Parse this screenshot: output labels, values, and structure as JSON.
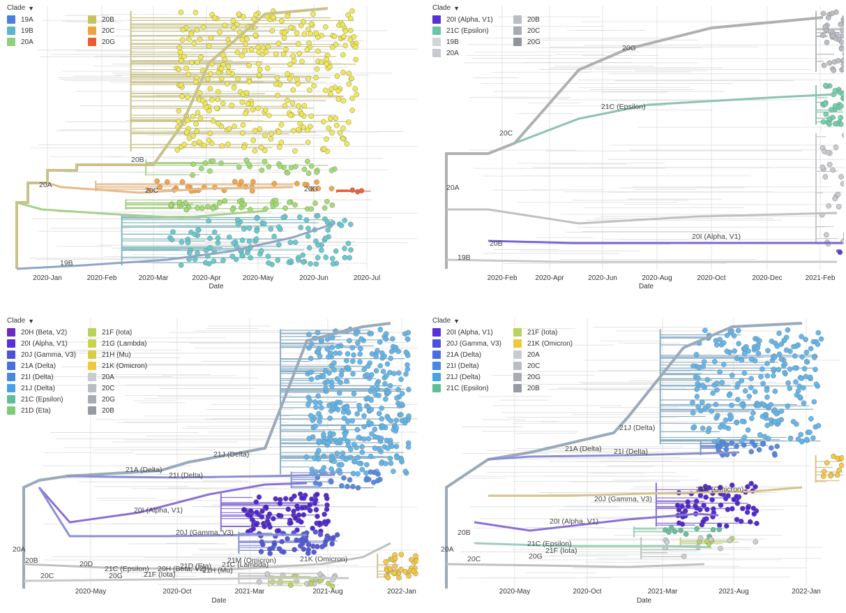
{
  "chart_data": [
    {
      "type": "scatter",
      "legend_title": "Clade",
      "xlabel": "Date",
      "x_ticks": [
        "2020-Jan",
        "2020-Feb",
        "2020-Mar",
        "2020-Apr",
        "2020-May",
        "2020-Jun",
        "2020-Jul"
      ],
      "legend": [
        {
          "label": "19A",
          "color": "#4a7fe0"
        },
        {
          "label": "19B",
          "color": "#5ab6c8"
        },
        {
          "label": "20A",
          "color": "#8fd07a"
        },
        {
          "label": "20B",
          "color": "#c9c25a"
        },
        {
          "label": "20C",
          "color": "#f4a23c"
        },
        {
          "label": "20G",
          "color": "#ef5a2e"
        }
      ],
      "branch_labels": [
        "20B",
        "20A",
        "20C",
        "20G",
        "19B"
      ],
      "clusters": [
        {
          "color": "#f0e84a",
          "n": 330,
          "x": [
            0.4,
            0.85
          ],
          "y": [
            0.02,
            0.55
          ],
          "branch": "#c9c28a"
        },
        {
          "color": "#9fdc6a",
          "n": 30,
          "x": [
            0.42,
            0.8
          ],
          "y": [
            0.58,
            0.64
          ],
          "branch": "#a9cf8a"
        },
        {
          "color": "#f4a23c",
          "n": 30,
          "x": [
            0.32,
            0.8
          ],
          "y": [
            0.66,
            0.7
          ],
          "branch": "#e6b98a"
        },
        {
          "color": "#ef5a2e",
          "n": 3,
          "x": [
            0.82,
            0.9
          ],
          "y": [
            0.695,
            0.705
          ],
          "branch": "#ef5a2e"
        },
        {
          "color": "#9fdc6a",
          "n": 45,
          "x": [
            0.38,
            0.8
          ],
          "y": [
            0.73,
            0.77
          ],
          "branch": "#a9cf8a"
        },
        {
          "color": "#5fc8cc",
          "n": 120,
          "x": [
            0.38,
            0.84
          ],
          "y": [
            0.79,
            0.98
          ],
          "branch": "#7fb8be"
        }
      ]
    },
    {
      "type": "scatter",
      "legend_title": "Clade",
      "xlabel": "Date",
      "x_ticks": [
        "2020-Feb",
        "2020-Apr",
        "2020-Jun",
        "2020-Aug",
        "2020-Oct",
        "2020-Dec",
        "2021-Feb"
      ],
      "legend": [
        {
          "label": "20I (Alpha, V1)",
          "color": "#5630d6"
        },
        {
          "label": "21C (Epsilon)",
          "color": "#6cc4a4"
        },
        {
          "label": "19B",
          "color": "#d2d4d8"
        },
        {
          "label": "20A",
          "color": "#c6c9ce"
        },
        {
          "label": "20B",
          "color": "#babdc3"
        },
        {
          "label": "20C",
          "color": "#a8abb2"
        },
        {
          "label": "20G",
          "color": "#8f939b"
        }
      ],
      "branch_labels": [
        "20G",
        "21C (Epsilon)",
        "20C",
        "20A",
        "20B",
        "20I (Alpha, V1)",
        "19B"
      ],
      "clusters": [
        {
          "color": "#b6bac2",
          "n": 40,
          "x": [
            0.94,
            1.0
          ],
          "y": [
            0.02,
            0.25
          ],
          "branch": "#b6b6b6"
        },
        {
          "color": "#6cd0aa",
          "n": 35,
          "x": [
            0.94,
            1.0
          ],
          "y": [
            0.3,
            0.45
          ],
          "branch": "#8cc2b0"
        },
        {
          "color": "#c6c9ce",
          "n": 25,
          "x": [
            0.94,
            1.0
          ],
          "y": [
            0.48,
            0.9
          ],
          "branch": "#c8c8c8"
        },
        {
          "color": "#5630d6",
          "n": 1,
          "x": [
            0.98,
            0.99
          ],
          "y": [
            0.92,
            0.93
          ],
          "branch": "#7a66d6"
        }
      ]
    },
    {
      "type": "scatter",
      "legend_title": "Clade",
      "xlabel": "Date",
      "x_ticks": [
        "2020-May",
        "2020-Oct",
        "2021-Mar",
        "2021-Aug",
        "2022-Jan"
      ],
      "legend": [
        {
          "label": "20H (Beta, V2)",
          "color": "#6a2bc0"
        },
        {
          "label": "21F (Iota)",
          "color": "#b6d45a"
        },
        {
          "label": "20I (Alpha, V1)",
          "color": "#5a30d8"
        },
        {
          "label": "21G (Lambda)",
          "color": "#cad44a"
        },
        {
          "label": "20J (Gamma, V3)",
          "color": "#4a52d8"
        },
        {
          "label": "21H (Mu)",
          "color": "#d8cc44"
        },
        {
          "label": "21A (Delta)",
          "color": "#4a6ede"
        },
        {
          "label": "21K (Omicron)",
          "color": "#f4c63c"
        },
        {
          "label": "21I (Delta)",
          "color": "#4a86e2"
        },
        {
          "label": "20A",
          "color": "#c8cbd0"
        },
        {
          "label": "21J (Delta)",
          "color": "#4aa2e6"
        },
        {
          "label": "20C",
          "color": "#babdc3"
        },
        {
          "label": "21C (Epsilon)",
          "color": "#5fbe9a"
        },
        {
          "label": "20G",
          "color": "#a8abb2"
        },
        {
          "label": "21D (Eta)",
          "color": "#7ecb7a"
        },
        {
          "label": "20B",
          "color": "#969aa2"
        }
      ],
      "branch_labels": [
        "21J (Delta)",
        "21A (Delta)",
        "21I (Delta)",
        "20I (Alpha, V1)",
        "20J (Gamma, V3)",
        "20A",
        "20B",
        "20D",
        "21M (Omicron)",
        "21K (Omicron)",
        "21C (Epsilon)",
        "20H (Beta, V2)",
        "21D (Eta)",
        "21C (Lambda)",
        "21H (Mu)",
        "20C",
        "20G",
        "21F (Iota)"
      ],
      "clusters": [
        {
          "color": "#5cb4ec",
          "n": 330,
          "x": [
            0.72,
            0.98
          ],
          "y": [
            0.04,
            0.57
          ],
          "branch": "#8aaec4"
        },
        {
          "color": "#4a86e2",
          "n": 20,
          "x": [
            0.73,
            0.92
          ],
          "y": [
            0.56,
            0.62
          ],
          "branch": "#7a96d6"
        },
        {
          "color": "#4a1fd0",
          "n": 90,
          "x": [
            0.56,
            0.78
          ],
          "y": [
            0.64,
            0.78
          ],
          "branch": "#8a70d6"
        },
        {
          "color": "#4a52d8",
          "n": 50,
          "x": [
            0.6,
            0.8
          ],
          "y": [
            0.78,
            0.86
          ],
          "branch": "#8a90d6"
        },
        {
          "color": "#f4c63c",
          "n": 35,
          "x": [
            0.92,
            1.0
          ],
          "y": [
            0.86,
            0.95
          ],
          "branch": "#d8c08a"
        },
        {
          "color": "#c8cbd0",
          "n": 18,
          "x": [
            0.6,
            0.8
          ],
          "y": [
            0.93,
            0.97
          ],
          "branch": "#c0c0c0"
        },
        {
          "color": "#b6d45a",
          "n": 8,
          "x": [
            0.66,
            0.8
          ],
          "y": [
            0.94,
            0.98
          ],
          "branch": "#c0d08a"
        }
      ]
    },
    {
      "type": "scatter",
      "legend_title": "Clade",
      "xlabel": "Date",
      "x_ticks": [
        "2020-May",
        "2020-Oct",
        "2021-Mar",
        "2021-Aug",
        "2022-Jan"
      ],
      "legend": [
        {
          "label": "20I (Alpha, V1)",
          "color": "#5a30d8"
        },
        {
          "label": "21F (Iota)",
          "color": "#b6d45a"
        },
        {
          "label": "20J (Gamma, V3)",
          "color": "#4a52d8"
        },
        {
          "label": "21K (Omicron)",
          "color": "#f4c63c"
        },
        {
          "label": "21A (Delta)",
          "color": "#4a6ede"
        },
        {
          "label": "20A",
          "color": "#c8cbd0"
        },
        {
          "label": "21I (Delta)",
          "color": "#4a86e2"
        },
        {
          "label": "20C",
          "color": "#babdc3"
        },
        {
          "label": "21J (Delta)",
          "color": "#4aa2e6"
        },
        {
          "label": "20G",
          "color": "#a8abb2"
        },
        {
          "label": "21C (Epsilon)",
          "color": "#5fbe9a"
        },
        {
          "label": "20B",
          "color": "#969aa2"
        }
      ],
      "branch_labels": [
        "21J (Delta)",
        "21A (Delta)",
        "21I (Delta)",
        "21K (Omicron)",
        "20J (Gamma, V3)",
        "20I (Alpha, V1)",
        "20B",
        "20A",
        "21C (Epsilon)",
        "21F (Iota)",
        "20C",
        "20G"
      ],
      "clusters": [
        {
          "color": "#5cb4ec",
          "n": 240,
          "x": [
            0.62,
            0.94
          ],
          "y": [
            0.04,
            0.46
          ],
          "branch": "#8aaec4"
        },
        {
          "color": "#4a86e2",
          "n": 25,
          "x": [
            0.68,
            0.84
          ],
          "y": [
            0.45,
            0.5
          ],
          "branch": "#7a96d6"
        },
        {
          "color": "#f4c63c",
          "n": 12,
          "x": [
            0.94,
            1.0
          ],
          "y": [
            0.5,
            0.6
          ],
          "branch": "#d8c08a"
        },
        {
          "color": "#4a1fd0",
          "n": 70,
          "x": [
            0.58,
            0.78
          ],
          "y": [
            0.6,
            0.76
          ],
          "branch": "#8a70d6"
        },
        {
          "color": "#5fbe9a",
          "n": 10,
          "x": [
            0.52,
            0.7
          ],
          "y": [
            0.76,
            0.8
          ],
          "branch": "#9ccfb8"
        },
        {
          "color": "#b6d45a",
          "n": 5,
          "x": [
            0.62,
            0.74
          ],
          "y": [
            0.8,
            0.83
          ],
          "branch": "#c0d08a"
        },
        {
          "color": "#c8cbd0",
          "n": 10,
          "x": [
            0.55,
            0.78
          ],
          "y": [
            0.8,
            0.88
          ],
          "branch": "#c0c0c0"
        }
      ]
    }
  ]
}
